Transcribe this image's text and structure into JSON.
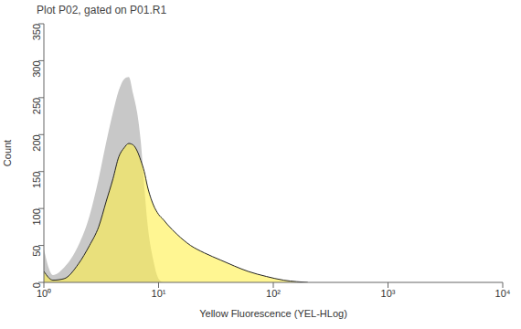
{
  "chart_data": {
    "type": "area",
    "title": "Plot P02, gated on P01.R1",
    "x_label": "Yellow Fluorescence (YEL-HLog)",
    "y_label": "Count",
    "x": [
      1,
      1.2,
      1.5,
      2,
      2.5,
      3,
      3.5,
      4,
      4.5,
      5,
      5.5,
      6,
      6.5,
      7,
      7.5,
      8,
      9,
      10,
      11,
      12,
      14.5,
      19,
      25,
      35,
      46,
      60,
      87,
      123,
      160,
      200
    ],
    "series": [
      {
        "color": "#c8c8c8",
        "values": [
          45,
          10,
          20,
          50,
          90,
          140,
          190,
          230,
          260,
          275,
          278,
          255,
          230,
          190,
          130,
          80,
          30,
          5,
          0,
          0,
          0,
          0,
          0,
          0,
          0,
          0,
          0,
          0,
          0,
          0
        ]
      },
      {
        "color": "#fff04a",
        "values": [
          15,
          3,
          5,
          25,
          50,
          75,
          110,
          140,
          170,
          182,
          188,
          186,
          178,
          165,
          150,
          130,
          105,
          92,
          85,
          78,
          65,
          50,
          40,
          30,
          22,
          15,
          8,
          3,
          1,
          0
        ]
      }
    ],
    "xlim": [
      1,
      10000
    ],
    "ylim": [
      0,
      350
    ],
    "xticks": [
      {
        "value": 1,
        "label": "10⁰"
      },
      {
        "value": 10,
        "label": "10¹"
      },
      {
        "value": 100,
        "label": "10²"
      },
      {
        "value": 1000,
        "label": "10³"
      },
      {
        "value": 10000,
        "label": "10⁴"
      }
    ],
    "yticks": [
      0,
      50,
      100,
      150,
      200,
      250,
      300,
      350
    ],
    "log": "x",
    "grid": false
  }
}
